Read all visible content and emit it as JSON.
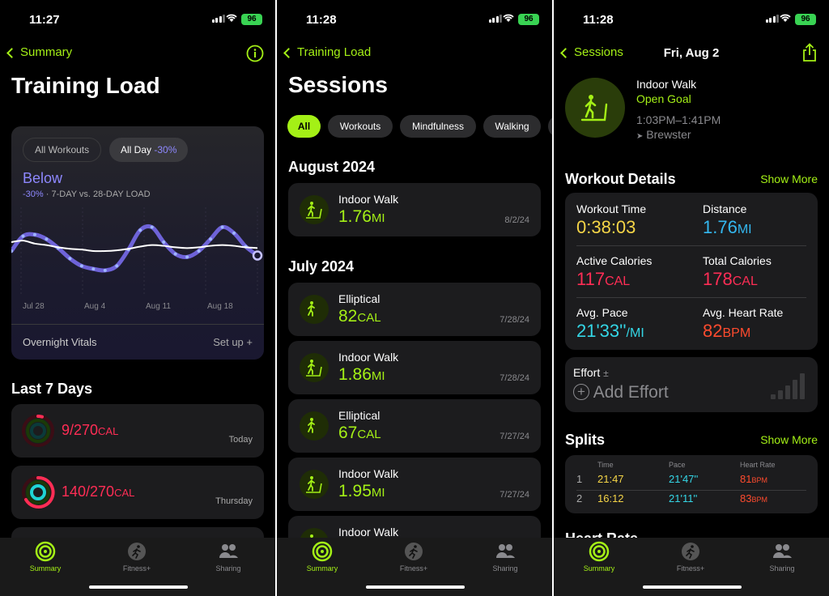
{
  "colors": {
    "accent": "#a4f016",
    "purple": "#8e88ff",
    "red": "#ff2d55",
    "yellow": "#f5d547",
    "blue": "#34b8f0",
    "orange": "#ff4b2e"
  },
  "status_bar": [
    {
      "time": "11:27"
    },
    {
      "time": "11:28"
    },
    {
      "time": "11:28"
    }
  ],
  "battery": "96",
  "tabbar": {
    "summary": "Summary",
    "fitness": "Fitness+",
    "sharing": "Sharing"
  },
  "screen1": {
    "back_label": "Summary",
    "title": "Training Load",
    "filters": [
      "All Workouts",
      "All Day"
    ],
    "filter_delta": "-30%",
    "status": "Below",
    "delta": "-30%",
    "comparison": "· 7-DAY vs. 28-DAY LOAD",
    "chart_data": {
      "type": "line",
      "x_ticks": [
        "Jul 28",
        "Aug 4",
        "Aug 11",
        "Aug 18"
      ],
      "series": [
        {
          "values": [
            50,
            70,
            72,
            66,
            54,
            40,
            30,
            26,
            24,
            30,
            52,
            78,
            82,
            62,
            46,
            42,
            50,
            66,
            82,
            74,
            56,
            44
          ]
        },
        {
          "values": [
            62,
            64,
            60,
            58,
            55,
            53,
            52,
            50,
            50,
            51,
            53,
            56,
            58,
            57,
            55,
            54,
            55,
            57,
            58,
            57,
            55,
            54
          ]
        }
      ]
    },
    "vitals_label": "Overnight Vitals",
    "vitals_action": "Set up +",
    "last7_title": "Last 7 Days",
    "rings": [
      {
        "value": "9/270",
        "unit": "CAL",
        "day": "Today"
      },
      {
        "value": "140/270",
        "unit": "CAL",
        "day": "Thursday"
      }
    ]
  },
  "screen2": {
    "back_label": "Training Load",
    "title": "Sessions",
    "filters": [
      "All",
      "Workouts",
      "Mindfulness",
      "Walking"
    ],
    "month1": "August 2024",
    "month2": "July 2024",
    "sessions": [
      {
        "name": "Indoor Walk",
        "value": "1.76",
        "unit": "MI",
        "date": "8/2/24",
        "icon": "walker-icon"
      },
      {
        "name": "Elliptical",
        "value": "82",
        "unit": "CAL",
        "date": "7/28/24",
        "icon": "elliptical-icon"
      },
      {
        "name": "Indoor Walk",
        "value": "1.86",
        "unit": "MI",
        "date": "7/28/24",
        "icon": "walker-icon"
      },
      {
        "name": "Elliptical",
        "value": "67",
        "unit": "CAL",
        "date": "7/27/24",
        "icon": "elliptical-icon"
      },
      {
        "name": "Indoor Walk",
        "value": "1.95",
        "unit": "MI",
        "date": "7/27/24",
        "icon": "walker-icon"
      },
      {
        "name": "Indoor Walk",
        "value": "",
        "unit": "",
        "date": "",
        "icon": "walker-icon"
      }
    ]
  },
  "screen3": {
    "back_label": "Sessions",
    "title": "Fri, Aug 2",
    "workout_name": "Indoor Walk",
    "goal": "Open Goal",
    "time_range": "1:03PM–1:41PM",
    "location": "Brewster",
    "details_title": "Workout Details",
    "show_more": "Show More",
    "details": [
      {
        "label": "Workout Time",
        "value": "0:38:03",
        "unit": "",
        "color": "#f5d547"
      },
      {
        "label": "Distance",
        "value": "1.76",
        "unit": "MI",
        "color": "#34b8f0"
      },
      {
        "label": "Active Calories",
        "value": "117",
        "unit": "CAL",
        "color": "#ff2d55"
      },
      {
        "label": "Total Calories",
        "value": "178",
        "unit": "CAL",
        "color": "#ff2d55"
      },
      {
        "label": "Avg. Pace",
        "value": "21'33''",
        "unit": "/MI",
        "color": "#34d6e6"
      },
      {
        "label": "Avg. Heart Rate",
        "value": "82",
        "unit": "BPM",
        "color": "#ff4b2e"
      }
    ],
    "effort_label": "Effort",
    "effort_action": "Add Effort",
    "splits_title": "Splits",
    "splits_headers": [
      "Time",
      "Pace",
      "Heart Rate"
    ],
    "splits": [
      {
        "n": "1",
        "time": "21:47",
        "pace": "21'47''",
        "hr": "81",
        "unit": "BPM"
      },
      {
        "n": "2",
        "time": "16:12",
        "pace": "21'11''",
        "hr": "83",
        "unit": "BPM"
      }
    ],
    "partial_heading": "Heart Rate"
  }
}
